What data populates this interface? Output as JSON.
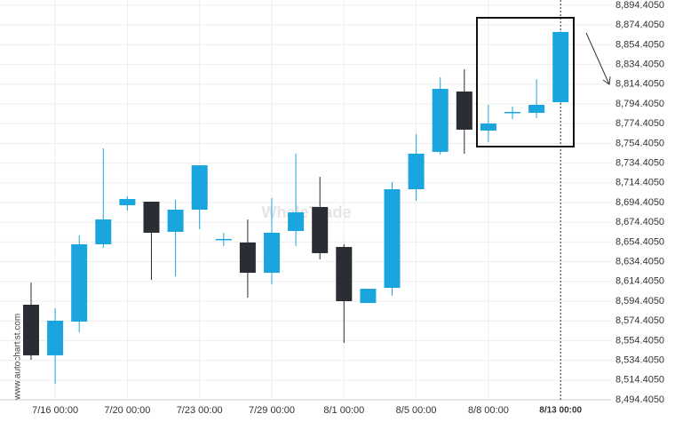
{
  "chart_data": {
    "type": "candlestick",
    "watermark": "WhaleTrade",
    "source": "www.autochartist.com",
    "categories": [
      null,
      "7/16 00:00",
      null,
      null,
      "7/20 00:00",
      null,
      null,
      "7/23 00:00",
      null,
      null,
      "7/29 00:00",
      null,
      null,
      "8/1 00:00",
      null,
      null,
      "8/5 00:00",
      null,
      null,
      "8/8 00:00",
      null,
      null,
      "8/13 00:00"
    ],
    "open": [
      8590.8,
      8539.5,
      8573.7,
      8652.1,
      8691.7,
      8695.3,
      8664.7,
      8687.2,
      8656.6,
      8653.9,
      8623.2,
      8665.6,
      8689.9,
      8649.4,
      8592.6,
      8607.9,
      8707.9,
      8745.8,
      8807.0,
      8767.4,
      8785.4,
      8785.4,
      8796.2
    ],
    "high": [
      8613.3,
      8587.2,
      8661.1,
      8749.4,
      8700.7,
      8695.3,
      8697.1,
      8732.2,
      8663.8,
      8677.3,
      8698.9,
      8744.0,
      8720.5,
      8652.1,
      8607.0,
      8715.1,
      8763.8,
      8821.4,
      8829.5,
      8793.5,
      8791.7,
      8819.6,
      8868.3
    ],
    "low": [
      8535.0,
      8510.6,
      8562.9,
      8648.5,
      8686.3,
      8616.0,
      8619.6,
      8667.4,
      8650.3,
      8598.0,
      8611.5,
      8650.3,
      8636.7,
      8552.1,
      8592.6,
      8599.8,
      8696.2,
      8743.1,
      8743.9,
      8755.7,
      8779.1,
      8780.0,
      8795.3
    ],
    "close": [
      8539.5,
      8574.6,
      8652.1,
      8677.3,
      8698.0,
      8663.8,
      8687.2,
      8732.2,
      8657.5,
      8623.2,
      8663.8,
      8684.5,
      8643.1,
      8594.4,
      8607.0,
      8707.9,
      8744.0,
      8809.7,
      8768.3,
      8774.6,
      8786.3,
      8793.5,
      8867.4
    ],
    "up_color": "#1ba5df",
    "down_color": "#2b2d35",
    "ylim": [
      8494.405,
      8894.405
    ],
    "yticks": [
      {
        "value": 8494.405,
        "label": "8,494.4050"
      },
      {
        "value": 8514.405,
        "label": "8,514.4050"
      },
      {
        "value": 8534.405,
        "label": "8,534.4050"
      },
      {
        "value": 8554.405,
        "label": "8,554.4050"
      },
      {
        "value": 8574.405,
        "label": "8,574.4050"
      },
      {
        "value": 8594.405,
        "label": "8,594.4050"
      },
      {
        "value": 8614.405,
        "label": "8,614.4050"
      },
      {
        "value": 8634.405,
        "label": "8,634.4050"
      },
      {
        "value": 8654.405,
        "label": "8,654.4050"
      },
      {
        "value": 8674.405,
        "label": "8,674.4050"
      },
      {
        "value": 8694.405,
        "label": "8,694.4050"
      },
      {
        "value": 8714.405,
        "label": "8,714.4050"
      },
      {
        "value": 8734.405,
        "label": "8,734.4050"
      },
      {
        "value": 8754.405,
        "label": "8,754.4050"
      },
      {
        "value": 8774.405,
        "label": "8,774.4050"
      },
      {
        "value": 8794.405,
        "label": "8,794.4050"
      },
      {
        "value": 8814.405,
        "label": "8,814.4050"
      },
      {
        "value": 8834.405,
        "label": "8,834.4050"
      },
      {
        "value": 8854.405,
        "label": "8,854.4050"
      },
      {
        "value": 8874.405,
        "label": "8,874.4050"
      },
      {
        "value": 8894.405,
        "label": "8,894.4050"
      }
    ],
    "grid": true
  }
}
